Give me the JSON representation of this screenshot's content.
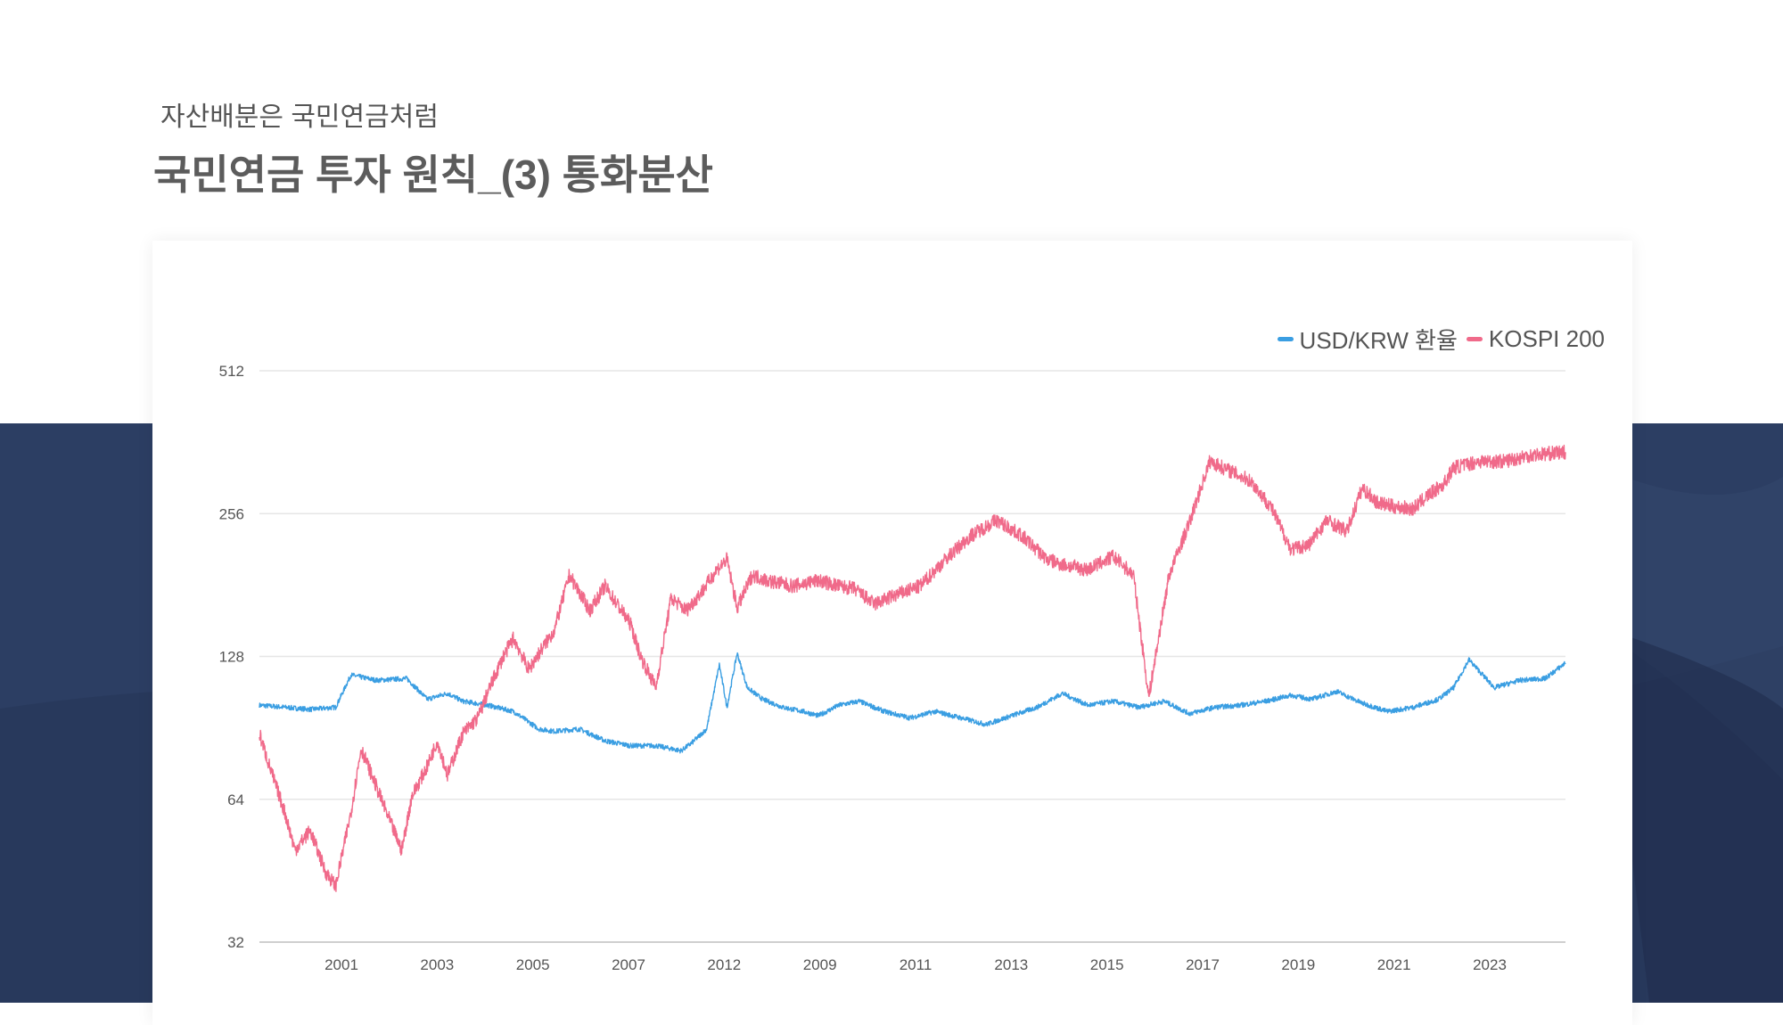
{
  "header": {
    "subtitle": "자산배분은 국민연금처럼",
    "title": "국민연금 투자 원칙_(3) 통화분산"
  },
  "colors": {
    "usdkrw": "#3a9ee2",
    "kospi": "#f06a8a",
    "background_dark": "#2c3e63"
  },
  "chart_data": {
    "type": "line",
    "y_scale": "log2",
    "ylim": [
      32,
      512
    ],
    "y_ticks": [
      512,
      256,
      128,
      64,
      32
    ],
    "x_tick_labels": [
      "2001",
      "2003",
      "2005",
      "2007",
      "2012",
      "2009",
      "2011",
      "2013",
      "2015",
      "2017",
      "2019",
      "2021",
      "2023"
    ],
    "legend_position": "top-right",
    "grid": true,
    "series": [
      {
        "name": "USD/KRW 환율",
        "color": "#3a9ee2",
        "x": [
          1999.5,
          2000.0,
          2000.5,
          2001.0,
          2001.3,
          2001.8,
          2002.4,
          2002.8,
          2003.2,
          2003.5,
          2004.0,
          2004.5,
          2005.0,
          2005.3,
          2005.8,
          2006.3,
          2006.8,
          2007.3,
          2007.8,
          2008.0,
          2008.3,
          2008.55,
          2008.7,
          2008.9,
          2009.1,
          2009.4,
          2009.8,
          2010.2,
          2010.5,
          2010.9,
          2011.3,
          2011.8,
          2012.3,
          2012.8,
          2013.3,
          2013.8,
          2014.3,
          2014.8,
          2015.3,
          2015.8,
          2016.3,
          2016.8,
          2017.3,
          2017.8,
          2018.3,
          2018.8,
          2019.3,
          2019.8,
          2020.2,
          2020.7,
          2021.2,
          2021.7,
          2022.2,
          2022.7,
          2023.0,
          2023.3,
          2023.8,
          2024.3,
          2024.8,
          2025.2
        ],
        "y": [
          101,
          100,
          99,
          100,
          117,
          114,
          115,
          104,
          107,
          103,
          101,
          98,
          90,
          89,
          90,
          85,
          83,
          83,
          81,
          84,
          90,
          123,
          100,
          130,
          110,
          104,
          100,
          98,
          96,
          101,
          103,
          98,
          95,
          98,
          95,
          92,
          96,
          100,
          107,
          101,
          103,
          100,
          103,
          97,
          100,
          101,
          103,
          106,
          104,
          108,
          102,
          98,
          100,
          104,
          110,
          126,
          110,
          114,
          115,
          124
        ]
      },
      {
        "name": "KOSPI 200",
        "color": "#f06a8a",
        "x": [
          1999.5,
          1999.7,
          2000.0,
          2000.2,
          2000.5,
          2000.8,
          2001.0,
          2001.3,
          2001.5,
          2001.8,
          2002.0,
          2002.3,
          2002.5,
          2002.8,
          2003.0,
          2003.2,
          2003.5,
          2003.8,
          2004.0,
          2004.3,
          2004.5,
          2004.8,
          2005.0,
          2005.3,
          2005.6,
          2006.0,
          2006.3,
          2006.8,
          2007.0,
          2007.3,
          2007.6,
          2007.9,
          2008.2,
          2008.5,
          2008.7,
          2008.9,
          2009.2,
          2009.5,
          2010.0,
          2010.5,
          2010.9,
          2011.2,
          2011.6,
          2012.0,
          2012.5,
          2013.0,
          2013.5,
          2014.0,
          2014.5,
          2015.0,
          2015.3,
          2015.8,
          2016.3,
          2016.7,
          2017.0,
          2017.4,
          2017.8,
          2018.2,
          2018.6,
          2019.0,
          2019.4,
          2019.8,
          2020.15,
          2020.5,
          2020.9,
          2021.2,
          2021.5,
          2021.8,
          2022.2,
          2022.5,
          2022.8,
          2023.0,
          2023.5,
          2024.0,
          2024.5,
          2025.2
        ],
        "y": [
          88,
          75,
          60,
          50,
          55,
          45,
          42,
          60,
          82,
          68,
          60,
          50,
          65,
          75,
          85,
          72,
          88,
          95,
          108,
          128,
          140,
          120,
          130,
          145,
          190,
          160,
          180,
          150,
          128,
          110,
          170,
          160,
          175,
          195,
          205,
          162,
          190,
          185,
          180,
          185,
          180,
          178,
          165,
          172,
          180,
          205,
          230,
          248,
          230,
          205,
          200,
          195,
          208,
          190,
          105,
          190,
          245,
          330,
          315,
          300,
          265,
          215,
          220,
          248,
          235,
          290,
          270,
          265,
          262,
          280,
          295,
          320,
          330,
          330,
          340,
          345
        ]
      }
    ]
  }
}
